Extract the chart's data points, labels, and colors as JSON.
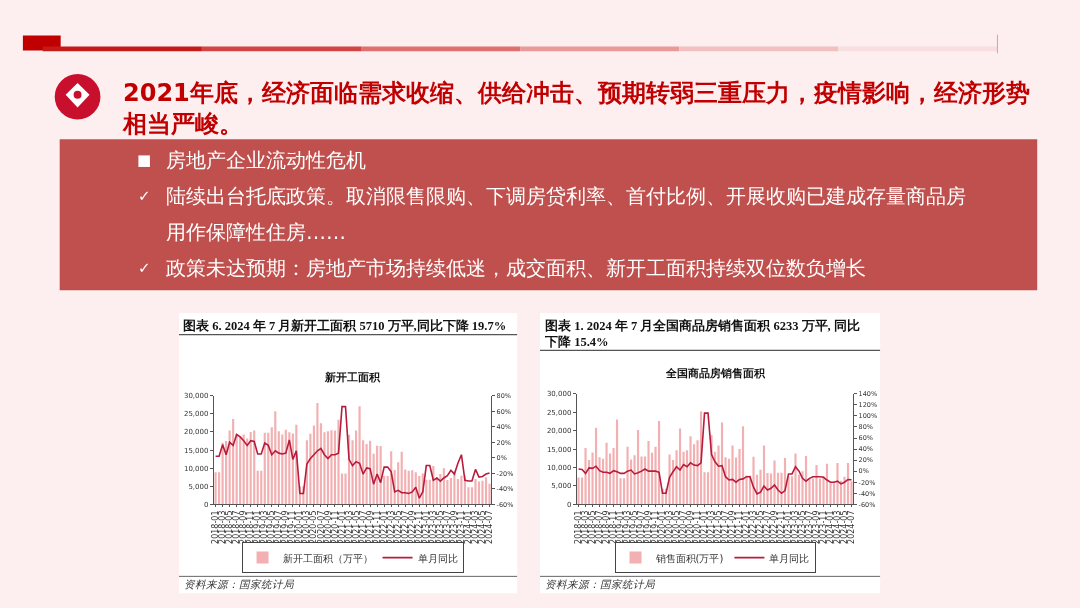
{
  "chart_data": [
    {
      "type": "other",
      "title": "2021年底，经济面临需求收缩、供给冲击、预期转弱三重压力，疫情影响，经济形势相当严峻。",
      "annotations": [
        "■ 房地产企业流动性危机",
        "✓ 陆续出台托底政策。取消限售限购、下调房贷利率、首付比例、开展收购已建成存量商品房用作保障性住房……",
        "✓ 政策未达预期：房地产市场持续低迷，成交面积、新开工面积持续双位数负增长"
      ]
    },
    {
      "type": "bar",
      "title": "图表 6. 2024 年 7 月新开工面积 5710 万平,同比下降 19.7%",
      "subtitle": "新开工面积",
      "categories": [
        "2018-01",
        null,
        "2018-03",
        null,
        "2018-05",
        null,
        "2018-07",
        null,
        "2018-09",
        null,
        "2018-11",
        null,
        "2019-01",
        null,
        "2019-03",
        null,
        "2019-05",
        null,
        "2019-07",
        null,
        "2019-09",
        null,
        "2019-11",
        null,
        "2020-01",
        null,
        "2020-03",
        null,
        "2020-05",
        null,
        "2020-07",
        null,
        "2020-09",
        null,
        "2020-11",
        null,
        "2021-01",
        null,
        "2021-03",
        null,
        "2021-05",
        null,
        "2021-07",
        null,
        "2021-09",
        null,
        "2021-11",
        null,
        "2022-01",
        null,
        "2022-03",
        null,
        "2022-05",
        null,
        "2022-07",
        null,
        "2022-09",
        null,
        "2022-11",
        null,
        "2023-01",
        null,
        "2023-03",
        null,
        "2023-05",
        null,
        "2023-07",
        null,
        "2023-09",
        null,
        "2023-11",
        null,
        "2024-01",
        null,
        "2024-03",
        null,
        "2024-05",
        null,
        "2024-07"
      ],
      "series": [
        {
          "name": "新开工面积（万平）",
          "type": "bar",
          "color": "#f2b0b2",
          "values": [
            8900,
            8900,
            17000,
            17500,
            20400,
            23600,
            19500,
            18900,
            19300,
            18200,
            20000,
            20400,
            9300,
            9300,
            19800,
            19800,
            21300,
            25700,
            20200,
            19300,
            20600,
            19900,
            19600,
            22000,
            5000,
            5000,
            17700,
            19500,
            21800,
            28000,
            22400,
            19900,
            20200,
            20500,
            20400,
            23400,
            8500,
            8500,
            19200,
            17700,
            20400,
            27100,
            17700,
            16700,
            17600,
            14000,
            16200,
            16100,
            7800,
            7800,
            14700,
            9500,
            11600,
            14500,
            9600,
            9300,
            9400,
            8900,
            7800,
            8500,
            6800,
            6800,
            10600,
            7500,
            8400,
            10000,
            6700,
            7300,
            9100,
            7000,
            7900,
            7900,
            4700,
            4700,
            7000,
            6300,
            6500,
            7500,
            5710
          ]
        },
        {
          "name": "单月同比",
          "type": "line",
          "axis": "y2",
          "color": "#b71c3c",
          "values": [
            2,
            2,
            17,
            4,
            20,
            16,
            30,
            27,
            22,
            16,
            22,
            21,
            5,
            5,
            19,
            16,
            4,
            9,
            6,
            5,
            6,
            23,
            -2,
            9,
            -46,
            -46,
            -8,
            -1,
            4,
            9,
            12,
            4,
            -1,
            4,
            4,
            6,
            66,
            66,
            -2,
            -10,
            -5,
            -7,
            -21,
            -13,
            -14,
            -34,
            -21,
            -32,
            -12,
            -12,
            -18,
            -44,
            -42,
            -45,
            -45,
            -46,
            -44,
            -38,
            -52,
            -44,
            -10,
            -10,
            -29,
            -26,
            -30,
            -26,
            -23,
            -16,
            -21,
            -7,
            4,
            -29,
            -30,
            -30,
            -15,
            -25,
            -24,
            -21,
            -19.7
          ]
        }
      ],
      "ylim": [
        0,
        30000
      ],
      "yticks": [
        0,
        {
          "value": 5000,
          "label": "5,000"
        },
        {
          "value": 10000,
          "label": "10,000"
        },
        {
          "value": 15000,
          "label": "15,000"
        },
        {
          "value": 20000,
          "label": "20,000"
        },
        {
          "value": 25000,
          "label": "25,000"
        },
        {
          "value": 30000,
          "label": "30,000"
        }
      ],
      "y2lim": [
        -60,
        80
      ],
      "y2ticks": [
        {
          "value": -60,
          "label": "-60%"
        },
        {
          "value": -40,
          "label": "-40%"
        },
        {
          "value": -20,
          "label": "-20%"
        },
        {
          "value": 0,
          "label": "0%"
        },
        {
          "value": 20,
          "label": "20%"
        },
        {
          "value": 40,
          "label": "40%"
        },
        {
          "value": 60,
          "label": "60%"
        },
        {
          "value": 80,
          "label": "80%"
        }
      ],
      "legend": "bottom",
      "annotations": [
        "资料来源：国家统计局"
      ]
    },
    {
      "type": "bar",
      "title": "图表 1. 2024 年 7 月全国商品房销售面积 6233 万平, 同比下降 15.4%",
      "subtitle": "全国商品房销售面积",
      "categories": [
        "2018-01",
        null,
        "2018-03",
        null,
        "2018-05",
        null,
        "2018-07",
        null,
        "2018-09",
        null,
        "2018-11",
        null,
        "2019-01",
        null,
        "2019-03",
        null,
        "2019-05",
        null,
        "2019-07",
        null,
        "2019-09",
        null,
        "2019-11",
        null,
        "2020-01",
        null,
        "2020-03",
        null,
        "2020-05",
        null,
        "2020-07",
        null,
        "2020-09",
        null,
        "2020-11",
        null,
        "2021-01",
        null,
        "2021-03",
        null,
        "2021-05",
        null,
        "2021-07",
        null,
        "2021-09",
        null,
        "2021-11",
        null,
        "2022-01",
        null,
        "2022-03",
        null,
        "2022-05",
        null,
        "2022-07",
        null,
        "2022-09",
        null,
        "2022-11",
        null,
        "2023-01",
        null,
        "2023-03",
        null,
        "2023-05",
        null,
        "2023-07",
        null,
        "2023-09",
        null,
        "2023-11",
        null,
        "2024-01",
        null,
        "2024-03",
        null,
        "2024-05",
        null,
        "2024-07"
      ],
      "series": [
        {
          "name": "销售面积(万平)",
          "type": "bar",
          "color": "#f2b0b2",
          "values": [
            7300,
            7300,
            15300,
            12000,
            14100,
            20800,
            12800,
            12400,
            16700,
            13800,
            15300,
            23000,
            7100,
            7100,
            15600,
            12200,
            13300,
            20200,
            13000,
            13000,
            17200,
            14000,
            15600,
            22600,
            4200,
            4200,
            13500,
            12000,
            14700,
            20600,
            14300,
            14700,
            18500,
            16300,
            17400,
            25200,
            8700,
            8700,
            18800,
            14300,
            16000,
            22200,
            12800,
            12400,
            16000,
            12700,
            15000,
            21200,
            7800,
            7800,
            12900,
            8000,
            9400,
            16000,
            8500,
            8400,
            11900,
            8600,
            8600,
            12600,
            7600,
            7600,
            13800,
            8000,
            9000,
            13100,
            6800,
            7000,
            10700,
            7000,
            7600,
            11000,
            5700,
            5700,
            11200,
            6400,
            7500,
            11200,
            6233
          ]
        },
        {
          "name": "单月同比",
          "type": "line",
          "axis": "y2",
          "color": "#b71c3c",
          "values": [
            4,
            3,
            -4,
            6,
            5,
            9,
            1,
            -2,
            -2,
            -4,
            1,
            -1,
            -4,
            -4,
            0,
            2,
            -5,
            -3,
            0,
            4,
            0,
            0,
            0,
            -2,
            -40,
            -40,
            -11,
            -1,
            8,
            2,
            12,
            8,
            15,
            11,
            10,
            15,
            105,
            105,
            30,
            17,
            9,
            10,
            -10,
            -16,
            -15,
            -20,
            -15,
            -14,
            -10,
            -10,
            -29,
            -41,
            -38,
            -27,
            -34,
            -31,
            -25,
            -34,
            -40,
            -35,
            -5,
            -5,
            8,
            0,
            -13,
            -18,
            -13,
            -10,
            -10,
            -10,
            -11,
            -16,
            -20,
            -20,
            -18,
            -23,
            -20,
            -15,
            -15.4
          ]
        }
      ],
      "ylim": [
        0,
        30000
      ],
      "yticks": [
        0,
        {
          "value": 5000,
          "label": "5,000"
        },
        {
          "value": 10000,
          "label": "10,000"
        },
        {
          "value": 15000,
          "label": "15,000"
        },
        {
          "value": 20000,
          "label": "20,000"
        },
        {
          "value": 25000,
          "label": "25,000"
        },
        {
          "value": 30000,
          "label": "30,000"
        }
      ],
      "y2lim": [
        -60,
        140
      ],
      "y2ticks": [
        {
          "value": -60,
          "label": "-60%"
        },
        {
          "value": -40,
          "label": "-40%"
        },
        {
          "value": -20,
          "label": "-20%"
        },
        {
          "value": 0,
          "label": "0%"
        },
        {
          "value": 20,
          "label": "20%"
        },
        {
          "value": 40,
          "label": "40%"
        },
        {
          "value": 60,
          "label": "60%"
        },
        {
          "value": 80,
          "label": "80%"
        },
        {
          "value": 100,
          "label": "100%"
        },
        {
          "value": 120,
          "label": "120%"
        },
        {
          "value": 140,
          "label": "140%"
        }
      ],
      "legend": "bottom",
      "annotations": [
        "资料来源：国家统计局"
      ]
    }
  ]
}
